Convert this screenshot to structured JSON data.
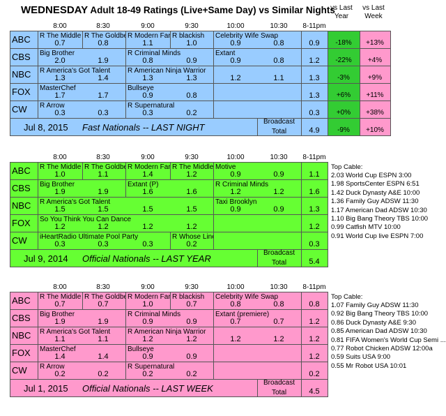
{
  "header": {
    "day": "WEDNESDAY",
    "subtitle": "Adult 18-49 Ratings (Live+Same Day) vs Similar Nights",
    "vs_last_year": "vs Last Year",
    "vs_last_week": "vs Last Week"
  },
  "time_slots": [
    "8:00",
    "8:30",
    "9:00",
    "9:30",
    "10:00",
    "10:30",
    "8-11pm"
  ],
  "colors": {
    "blue": "#99ccff",
    "green": "#66ff33",
    "pink": "#ff99cc",
    "change_green": "#33cc33"
  },
  "sections": [
    {
      "id": "last-night",
      "footer_date": "Jul 8, 2015",
      "footer_label": "Fast Nationals -- LAST NIGHT",
      "broadcast_label": "Broadcast Total",
      "broadcast_total": "4.9",
      "broadcast_yoy": "-9%",
      "broadcast_wow": "+10%",
      "networks": [
        {
          "net": "ABC",
          "shows": [
            "R The Middle",
            "R The Goldbe",
            "R Modern Far",
            "R blackish",
            "Celebrity Wife Swap",
            ""
          ],
          "vals": [
            "0.7",
            "0.8",
            "1.1",
            "1.0",
            "0.9",
            "0.8"
          ],
          "total": "0.9",
          "yoy": "-18%",
          "wow": "+13%"
        },
        {
          "net": "CBS",
          "shows": [
            "Big Brother",
            "",
            "R Criminal Minds",
            "",
            "Extant",
            ""
          ],
          "vals": [
            "2.0",
            "1.9",
            "0.8",
            "0.9",
            "0.9",
            "0.8"
          ],
          "total": "1.2",
          "yoy": "-22%",
          "wow": "+4%"
        },
        {
          "net": "NBC",
          "shows": [
            "R America's Got Talent",
            "",
            "R American Ninja Warrior",
            "",
            "",
            ""
          ],
          "vals": [
            "1.3",
            "1.4",
            "1.3",
            "1.3",
            "1.2",
            "1.1"
          ],
          "total": "1.3",
          "yoy": "-3%",
          "wow": "+9%"
        },
        {
          "net": "FOX",
          "shows": [
            "MasterChef",
            "",
            "Bullseye",
            "",
            "",
            ""
          ],
          "vals": [
            "1.7",
            "1.7",
            "0.9",
            "0.8",
            "",
            ""
          ],
          "total": "1.3",
          "yoy": "+6%",
          "wow": "+11%"
        },
        {
          "net": "CW",
          "shows": [
            "R Arrow",
            "",
            "R Supernatural",
            "",
            "",
            ""
          ],
          "vals": [
            "0.3",
            "0.3",
            "0.3",
            "0.2",
            "",
            ""
          ],
          "total": "0.3",
          "yoy": "+0%",
          "wow": "+38%"
        }
      ]
    },
    {
      "id": "last-year",
      "footer_date": "Jul 9, 2014",
      "footer_label": "Official Nationals -- LAST YEAR",
      "broadcast_label": "Broadcast Total",
      "broadcast_total": "5.4",
      "networks": [
        {
          "net": "ABC",
          "shows": [
            "R The Middle",
            "R The Goldbe",
            "R Modern Far",
            "R The Middle",
            "Motive",
            ""
          ],
          "vals": [
            "1.0",
            "1.1",
            "1.4",
            "1.2",
            "0.9",
            "0.9"
          ],
          "total": "1.1"
        },
        {
          "net": "CBS",
          "shows": [
            "Big Brother",
            "",
            "Extant (P)",
            "",
            "R Criminal Minds",
            ""
          ],
          "vals": [
            "1.9",
            "1.9",
            "1.6",
            "1.6",
            "1.2",
            "1.2"
          ],
          "total": "1.6"
        },
        {
          "net": "NBC",
          "shows": [
            "R America's Got Talent",
            "",
            "",
            "",
            "Taxi Brooklyn",
            ""
          ],
          "vals": [
            "1.5",
            "1.5",
            "1.5",
            "1.5",
            "0.9",
            "0.9"
          ],
          "total": "1.3"
        },
        {
          "net": "FOX",
          "shows": [
            "So You Think You Can Dance",
            "",
            "",
            "",
            "",
            ""
          ],
          "vals": [
            "1.2",
            "1.2",
            "1.2",
            "1.2",
            "",
            ""
          ],
          "total": "1.2"
        },
        {
          "net": "CW",
          "shows": [
            "iHeartRadio Ultimate Pool Party",
            "",
            "",
            "R Whose Line",
            "",
            ""
          ],
          "vals": [
            "0.3",
            "0.3",
            "0.3",
            "0.2",
            "",
            ""
          ],
          "total": "0.3"
        }
      ],
      "top_cable_title": "Top Cable:",
      "top_cable": [
        "2.03 World Cup ESPN 3:00",
        "1.98 SportsCenter ESPN 6:51",
        "1.42 Duck Dynasty A&E 10:00",
        "1.36 Family Guy ADSW 11:30",
        "1.17 American Dad ADSW 10:30",
        "1.10 Big Bang Theory TBS 10:00",
        "0.99 Catfish MTV 10:00",
        "0.91 World Cup live ESPN 7:00"
      ]
    },
    {
      "id": "last-week",
      "footer_date": "Jul 1, 2015",
      "footer_label": "Official Nationals -- LAST WEEK",
      "broadcast_label": "Broadcast Total",
      "broadcast_total": "4.5",
      "networks": [
        {
          "net": "ABC",
          "shows": [
            "R The Middle",
            "R The Goldbe",
            "R Modern Far",
            "R blackish",
            "Celebrity Wife Swap",
            ""
          ],
          "vals": [
            "0.7",
            "0.7",
            "1.0",
            "0.7",
            "0.8",
            "0.8"
          ],
          "total": "0.8"
        },
        {
          "net": "CBS",
          "shows": [
            "Big Brother",
            "",
            "R Criminal Minds",
            "",
            "Extant (premiere)",
            ""
          ],
          "vals": [
            "1.9",
            "1.9",
            "0.9",
            "0.9",
            "0.7",
            "0.7"
          ],
          "total": "1.2"
        },
        {
          "net": "NBC",
          "shows": [
            "R America's Got Talent",
            "",
            "R American Ninja Warrior",
            "",
            "",
            ""
          ],
          "vals": [
            "1.1",
            "1.1",
            "1.2",
            "1.2",
            "1.2",
            "1.2"
          ],
          "total": "1.2"
        },
        {
          "net": "FOX",
          "shows": [
            "MasterChef",
            "",
            "Bullseye",
            "",
            "",
            ""
          ],
          "vals": [
            "1.4",
            "1.4",
            "0.9",
            "0.9",
            "",
            ""
          ],
          "total": "1.2"
        },
        {
          "net": "CW",
          "shows": [
            "R Arrow",
            "",
            "R Supernatural",
            "",
            "",
            ""
          ],
          "vals": [
            "0.2",
            "0.2",
            "0.2",
            "0.2",
            "",
            ""
          ],
          "total": "0.2"
        }
      ],
      "top_cable_title": "Top Cable:",
      "top_cable": [
        "1.07 Family Guy ADSW 11:30",
        "0.92 Big Bang Theory TBS 10:00",
        "0.86 Duck Dynasty A&E 9:30",
        "0.85 American Dad ADSW 10:30",
        "0.81 FIFA Women's World Cup Semi ...",
        "0.77 Robot Chicken ADSW 12:00a",
        "0.59 Suits USA 9:00",
        "0.55 Mr Robot USA 10:01"
      ]
    }
  ]
}
